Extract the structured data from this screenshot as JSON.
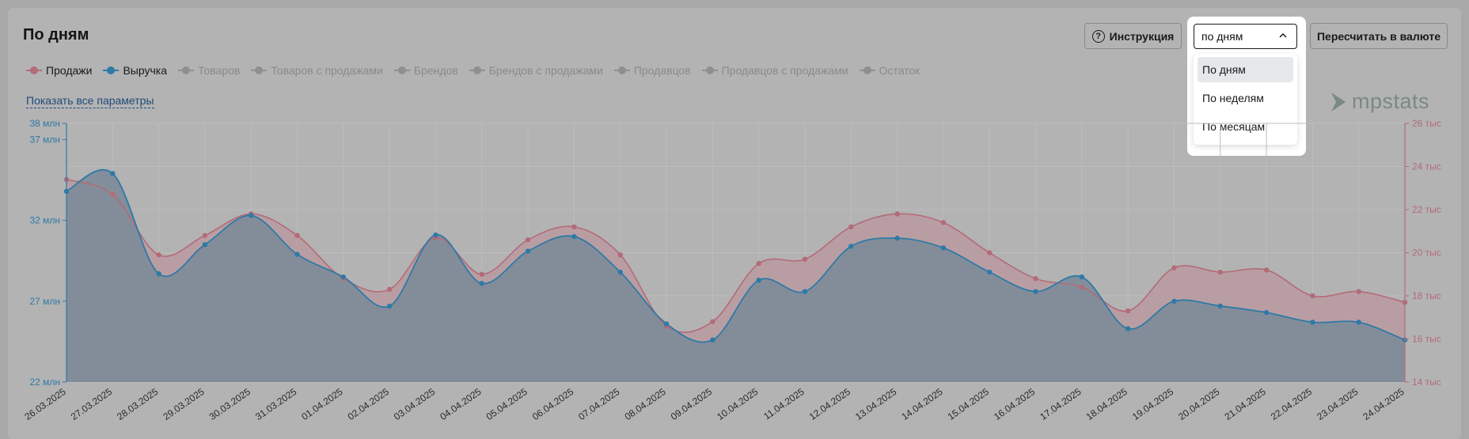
{
  "header": {
    "title": "По дням",
    "instruction_label": "Инструкция",
    "instruction_icon": "question-circle-icon",
    "recalc_label": "Пересчитать в валюте"
  },
  "period_select": {
    "value": "по дням",
    "options": [
      "По дням",
      "По неделям",
      "По месяцам"
    ],
    "selected_index": 0
  },
  "legend": [
    {
      "label": "Продажи",
      "color": "#b36b78",
      "active": true
    },
    {
      "label": "Выручка",
      "color": "#2e7aa6",
      "active": true
    },
    {
      "label": "Товаров",
      "color": "#8f8f8f",
      "active": false
    },
    {
      "label": "Товаров с продажами",
      "color": "#8f8f8f",
      "active": false
    },
    {
      "label": "Брендов",
      "color": "#8f8f8f",
      "active": false
    },
    {
      "label": "Брендов с продажами",
      "color": "#8f8f8f",
      "active": false
    },
    {
      "label": "Продавцов",
      "color": "#8f8f8f",
      "active": false
    },
    {
      "label": "Продавцов с продажами",
      "color": "#8f8f8f",
      "active": false
    },
    {
      "label": "Остаток",
      "color": "#8f8f8f",
      "active": false
    }
  ],
  "show_all_label": "Показать все параметры",
  "logo_text": "mpstats",
  "chart_data": {
    "type": "area",
    "x": [
      "26.03.2025",
      "27.03.2025",
      "28.03.2025",
      "29.03.2025",
      "30.03.2025",
      "31.03.2025",
      "01.04.2025",
      "02.04.2025",
      "03.04.2025",
      "04.04.2025",
      "05.04.2025",
      "06.04.2025",
      "07.04.2025",
      "08.04.2025",
      "09.04.2025",
      "10.04.2025",
      "11.04.2025",
      "12.04.2025",
      "13.04.2025",
      "14.04.2025",
      "15.04.2025",
      "16.04.2025",
      "17.04.2025",
      "18.04.2025",
      "19.04.2025",
      "20.04.2025",
      "21.04.2025",
      "22.04.2025",
      "23.04.2025",
      "24.04.2025"
    ],
    "series": [
      {
        "name": "Продажи",
        "axis": "right",
        "color": "#b36b78",
        "values": [
          23.4,
          22.7,
          19.9,
          20.8,
          21.8,
          20.8,
          18.8,
          18.3,
          20.7,
          19.0,
          20.6,
          21.2,
          19.9,
          16.6,
          16.8,
          19.5,
          19.7,
          21.2,
          21.8,
          21.4,
          20.0,
          18.8,
          18.4,
          17.3,
          19.3,
          19.1,
          19.2,
          18.0,
          18.2,
          17.7
        ]
      },
      {
        "name": "Выручка",
        "axis": "left",
        "color": "#2e7aa6",
        "values": [
          33.8,
          34.9,
          28.7,
          30.5,
          32.3,
          29.9,
          28.5,
          26.7,
          31.1,
          28.1,
          30.1,
          31.0,
          28.8,
          25.6,
          24.6,
          28.3,
          27.6,
          30.4,
          30.9,
          30.3,
          28.8,
          27.6,
          28.5,
          25.3,
          27.0,
          26.7,
          26.3,
          25.7,
          25.7,
          24.6
        ]
      }
    ],
    "y_left": {
      "min": 22,
      "max": 38,
      "ticks": [
        22,
        27,
        32,
        37,
        38
      ],
      "tick_labels": [
        "22 млн",
        "27 млн",
        "32 млн",
        "37 млн",
        "38 млн"
      ],
      "color": "#2e7aa6"
    },
    "y_right": {
      "min": 14,
      "max": 26,
      "ticks": [
        14,
        16,
        18,
        20,
        22,
        24,
        26
      ],
      "tick_labels": [
        "14 тыс",
        "16 тыс",
        "18 тыс",
        "20 тыс",
        "22 тыс",
        "24 тыс",
        "26 тыс"
      ],
      "color": "#b36b78"
    },
    "grid": true
  },
  "colors": {
    "sales_fill": "#b89aa0",
    "revenue_fill": "#7f8c9a",
    "grid": "#bdbdbd"
  }
}
